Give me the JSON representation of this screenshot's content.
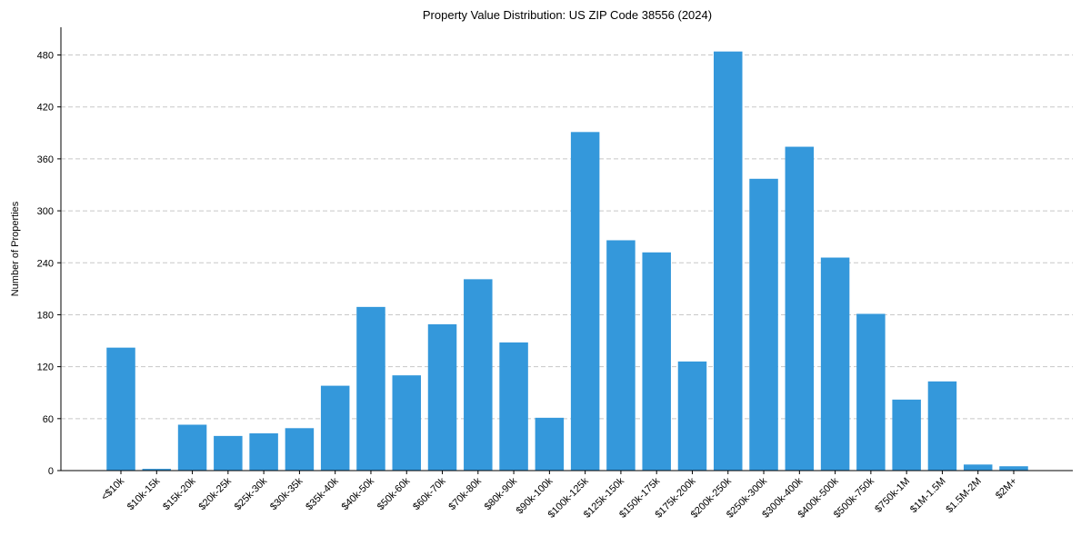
{
  "chart_data": {
    "type": "bar",
    "title": "Property Value Distribution: US ZIP Code 38556 (2024)",
    "xlabel": "",
    "ylabel": "Number of Properties",
    "ylim": [
      0,
      512
    ],
    "yticks": [
      0,
      60,
      120,
      180,
      240,
      300,
      360,
      420,
      480
    ],
    "grid": "y-dashed",
    "categories": [
      "<$10k",
      "$10k-15k",
      "$15k-20k",
      "$20k-25k",
      "$25k-30k",
      "$30k-35k",
      "$35k-40k",
      "$40k-50k",
      "$50k-60k",
      "$60k-70k",
      "$70k-80k",
      "$80k-90k",
      "$90k-100k",
      "$100k-125k",
      "$125k-150k",
      "$150k-175k",
      "$175k-200k",
      "$200k-250k",
      "$250k-300k",
      "$300k-400k",
      "$400k-500k",
      "$500k-750k",
      "$750k-1M",
      "$1M-1.5M",
      "$1.5M-2M",
      "$2M+"
    ],
    "values": [
      142,
      2,
      53,
      40,
      43,
      49,
      98,
      189,
      110,
      169,
      221,
      148,
      61,
      391,
      266,
      252,
      126,
      484,
      337,
      374,
      246,
      181,
      82,
      103,
      7,
      5
    ],
    "bar_color": "#3498db"
  }
}
